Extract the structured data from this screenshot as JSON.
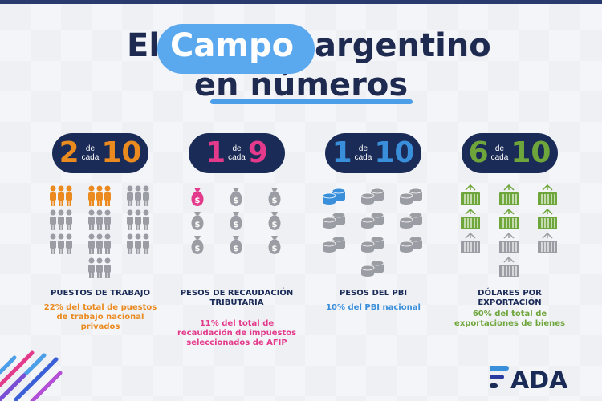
{
  "title": {
    "word1": "El",
    "highlight": "Campo",
    "word2": "argentino",
    "line2": "en números"
  },
  "colors": {
    "navy": "#1b2b57",
    "orange": "#ea8a1f",
    "pink": "#e43a8c",
    "blue": "#3a8fdb",
    "green": "#6ea63b",
    "gray": "#9a9da3",
    "accent": "#5aa8ee"
  },
  "columns": [
    {
      "num": "2",
      "den": "10",
      "de": "de",
      "cada": "cada",
      "icon": "person-group-icon",
      "highlighted": 2,
      "total": 10,
      "label": "PUESTOS DE TRABAJO",
      "desc": "22% del total de puestos de trabajo nacional privados"
    },
    {
      "num": "1",
      "den": "9",
      "de": "de",
      "cada": "cada",
      "icon": "money-bag-icon",
      "highlighted": 1,
      "total": 9,
      "label": "PESOS DE RECAUDACIÓN TRIBUTARIA",
      "desc": "11% del total de recaudación de impuestos seleccionados de AFIP"
    },
    {
      "num": "1",
      "den": "10",
      "de": "de",
      "cada": "cada",
      "icon": "coin-stack-icon",
      "highlighted": 1,
      "total": 10,
      "label": "PESOS DEL PBI",
      "desc": "10% del PBI nacional"
    },
    {
      "num": "6",
      "den": "10",
      "de": "de",
      "cada": "cada",
      "icon": "cargo-container-icon",
      "highlighted": 6,
      "total": 10,
      "label": "DÓLARES POR EXPORTACIÓN",
      "desc": "60% del total de exportaciones de bienes"
    }
  ],
  "logo": {
    "text": "FADA"
  }
}
